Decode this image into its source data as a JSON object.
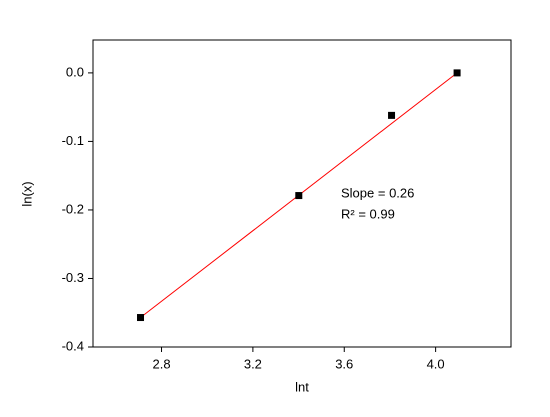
{
  "chart_data": {
    "type": "scatter",
    "x_label": "lnt",
    "y_label": "ln(x)",
    "x": [
      2.708,
      3.401,
      3.807,
      4.094
    ],
    "series": [
      {
        "color": "#000000",
        "values": [
          -0.357,
          -0.179,
          -0.062,
          0.0
        ]
      }
    ],
    "fit": {
      "color": "#ff0000",
      "x": [
        2.708,
        4.094
      ],
      "values": [
        -0.357,
        0.0
      ]
    },
    "annotations": [
      "Slope =  0.26",
      "R² = 0.99"
    ],
    "xlim": [
      2.5,
      4.33
    ],
    "xticks": [
      {
        "value": 2.8,
        "label": "2.8"
      },
      {
        "value": 3.2,
        "label": "3.2"
      },
      {
        "value": 3.6,
        "label": "3.6"
      },
      {
        "value": 4.0,
        "label": "4.0"
      }
    ],
    "ylim": [
      -0.4,
      0.048
    ],
    "yticks": [
      {
        "value": -0.4,
        "label": "-0.4"
      },
      {
        "value": -0.3,
        "label": "-0.3"
      },
      {
        "value": -0.2,
        "label": "-0.2"
      },
      {
        "value": -0.1,
        "label": "-0.1"
      },
      {
        "value": 0.0,
        "label": "0.0"
      }
    ],
    "grid": false
  }
}
